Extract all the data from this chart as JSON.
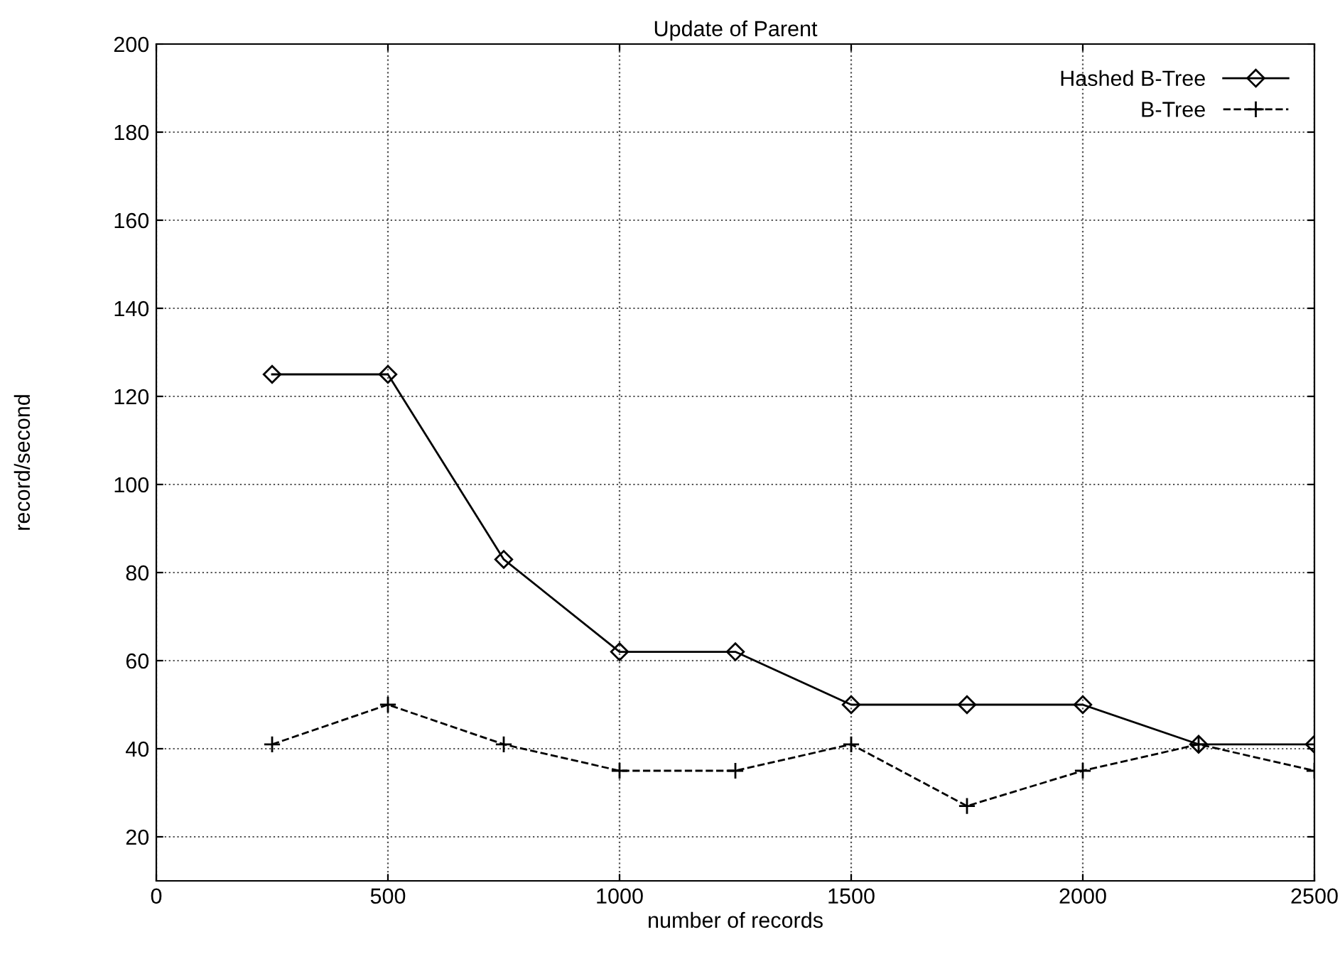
{
  "chart_data": {
    "type": "line",
    "title": "Update of Parent",
    "xlabel": "number of records",
    "ylabel": "record/second",
    "x": [
      250,
      500,
      750,
      1000,
      1250,
      1500,
      1750,
      2000,
      2250,
      2500
    ],
    "series": [
      {
        "name": "Hashed B-Tree",
        "color": "#000000",
        "marker": "diamond",
        "line_style": "solid",
        "values": [
          125,
          125,
          83,
          62,
          62,
          50,
          50,
          50,
          41,
          41
        ]
      },
      {
        "name": "B-Tree",
        "color": "#000000",
        "marker": "cross",
        "line_style": "dashed",
        "values": [
          41,
          50,
          41,
          35,
          35,
          41,
          27,
          35,
          41,
          35
        ]
      }
    ],
    "xlim": [
      0,
      2500
    ],
    "xticks": [
      0,
      500,
      1000,
      1500,
      2000,
      2500
    ],
    "ylim": [
      10,
      200
    ],
    "yticks": [
      20,
      40,
      60,
      80,
      100,
      120,
      140,
      160,
      180,
      200
    ],
    "grid": true,
    "legend": "top right"
  }
}
